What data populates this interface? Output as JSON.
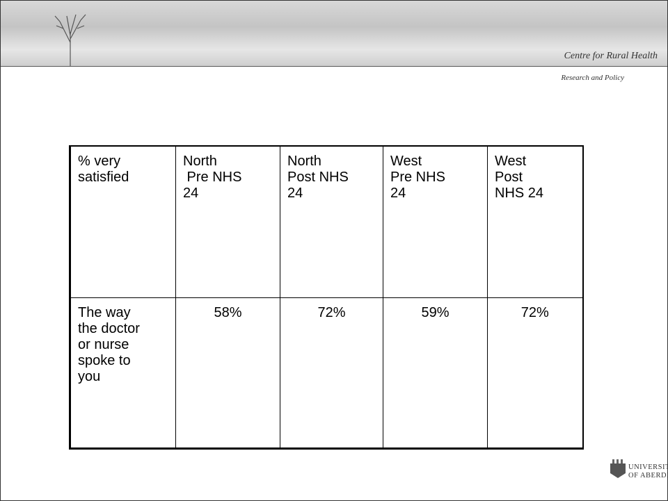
{
  "header": {
    "title": "Centre for Rural Health",
    "subtitle": "Research and Policy"
  },
  "table": {
    "rows": [
      [
        [
          "% very",
          "satisfied"
        ],
        [
          "North",
          " Pre NHS",
          "24"
        ],
        [
          "North",
          "Post NHS",
          "24"
        ],
        [
          "West",
          "Pre NHS",
          "24"
        ],
        [
          "West",
          "Post",
          "NHS 24"
        ]
      ],
      [
        [
          "The way",
          "the doctor",
          "or nurse",
          "spoke to",
          "you"
        ],
        [
          "58%"
        ],
        [
          "72%"
        ],
        [
          "59%"
        ],
        [
          "72%"
        ]
      ]
    ]
  },
  "footer": {
    "logo": [
      "UNIVERSITY",
      "OF ABERDEEN"
    ]
  }
}
